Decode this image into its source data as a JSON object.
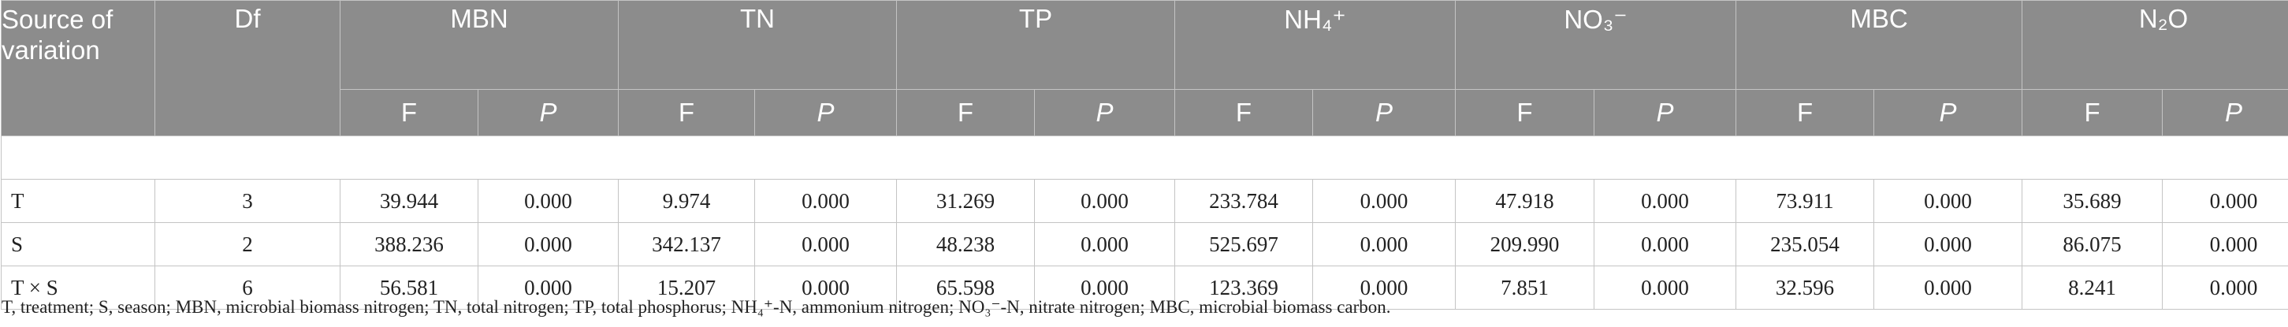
{
  "table": {
    "header": {
      "source": "Source of variation",
      "df": "Df",
      "groups": [
        "MBN",
        "TN",
        "TP",
        "NH₄⁺",
        "NO₃⁻",
        "MBC",
        "N₂O"
      ],
      "sub_f": "F",
      "sub_p": "P"
    },
    "rows": [
      {
        "source": "T",
        "df": "3",
        "values": [
          "39.944",
          "0.000",
          "9.974",
          "0.000",
          "31.269",
          "0.000",
          "233.784",
          "0.000",
          "47.918",
          "0.000",
          "73.911",
          "0.000",
          "35.689",
          "0.000"
        ]
      },
      {
        "source": "S",
        "df": "2",
        "values": [
          "388.236",
          "0.000",
          "342.137",
          "0.000",
          "48.238",
          "0.000",
          "525.697",
          "0.000",
          "209.990",
          "0.000",
          "235.054",
          "0.000",
          "86.075",
          "0.000"
        ]
      },
      {
        "source": "T × S",
        "df": "6",
        "values": [
          "56.581",
          "0.000",
          "15.207",
          "0.000",
          "65.598",
          "0.000",
          "123.369",
          "0.000",
          "7.851",
          "0.000",
          "32.596",
          "0.000",
          "8.241",
          "0.000"
        ]
      }
    ]
  },
  "footnote": "T, treatment; S, season; MBN, microbial biomass nitrogen; TN, total nitrogen; TP, total phosphorus; NH₄⁺-N, ammonium nitrogen; NO₃⁻-N, nitrate nitrogen; MBC, microbial biomass carbon."
}
